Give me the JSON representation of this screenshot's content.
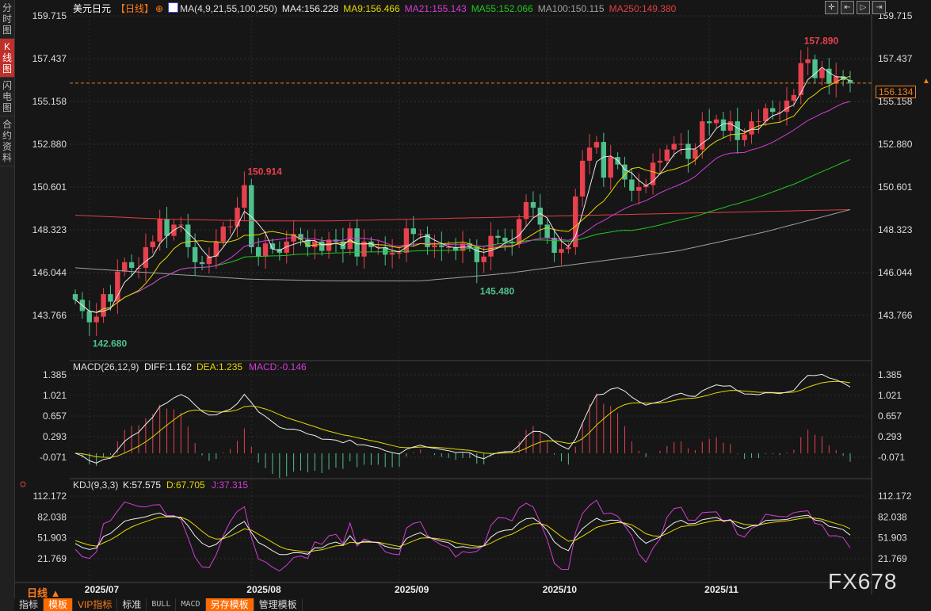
{
  "sidebar": {
    "tabs": [
      {
        "label": "分时图",
        "active": false
      },
      {
        "label": "K线图",
        "active": true
      },
      {
        "label": "闪电图",
        "active": false
      },
      {
        "label": "合约资料",
        "active": false
      }
    ]
  },
  "header": {
    "symbol": "美元日元",
    "period": "【日线】",
    "ma_label": "MA(4,9,21,55,100,250)",
    "ma4": "MA4:156.228",
    "ma9": "MA9:156.466",
    "ma21": "MA21:155.143",
    "ma55": "MA55:152.066",
    "ma100": "MA100:150.115",
    "ma250": "MA250:149.380"
  },
  "tools": [
    {
      "icon": "crosshair-icon",
      "glyph": "✛"
    },
    {
      "icon": "zoom-start-icon",
      "glyph": "⇤"
    },
    {
      "icon": "play-icon",
      "glyph": "▷"
    },
    {
      "icon": "zoom-end-icon",
      "glyph": "⇥"
    }
  ],
  "colors": {
    "up": "#e8414e",
    "down": "#4fc08d",
    "ma4": "#e8e8e8",
    "ma9": "#e6d600",
    "ma21": "#d63cd6",
    "ma55": "#1fc81f",
    "ma100": "#a0a0a0",
    "ma250": "#e04040",
    "current": "#f08020"
  },
  "current_price": "156.134",
  "period_button": "日线 ▲",
  "watermark": "FX678",
  "toolbar": [
    {
      "label": "指标",
      "style": "normal"
    },
    {
      "label": "模板",
      "style": "hl"
    },
    {
      "label": "VIP指标",
      "style": "vip"
    },
    {
      "label": "标准",
      "style": "normal"
    },
    {
      "label": "BULL",
      "style": "mono"
    },
    {
      "label": "MACD",
      "style": "mono"
    },
    {
      "label": "另存模板",
      "style": "hl"
    },
    {
      "label": "管理模板",
      "style": "normal"
    }
  ],
  "chart_data": {
    "type": "candlestick",
    "price_axis": {
      "ticks": [
        "159.715",
        "157.437",
        "155.158",
        "152.880",
        "150.601",
        "148.323",
        "146.044",
        "143.766"
      ],
      "range": [
        143.766,
        159.715
      ]
    },
    "x_ticks": [
      {
        "label": "2025/07",
        "index": 2
      },
      {
        "label": "2025/08",
        "index": 25
      },
      {
        "label": "2025/09",
        "index": 46
      },
      {
        "label": "2025/10",
        "index": 67
      },
      {
        "label": "2025/11",
        "index": 90
      }
    ],
    "closes": [
      144.6,
      144.0,
      143.4,
      143.7,
      144.9,
      144.5,
      146.1,
      146.6,
      146.3,
      146.3,
      147.4,
      147.7,
      148.9,
      148.0,
      148.6,
      148.6,
      147.4,
      146.6,
      146.5,
      146.9,
      147.7,
      148.5,
      148.5,
      149.5,
      150.7,
      147.4,
      146.9,
      147.6,
      147.3,
      147.1,
      147.7,
      148.1,
      147.8,
      147.4,
      147.7,
      147.2,
      147.8,
      147.7,
      147.3,
      148.4,
      146.9,
      147.7,
      147.4,
      147.4,
      147.0,
      147.1,
      147.1,
      148.4,
      148.1,
      148.1,
      147.4,
      147.5,
      147.4,
      147.4,
      147.2,
      147.6,
      147.4,
      146.6,
      146.9,
      148.0,
      147.9,
      147.7,
      147.6,
      148.9,
      149.8,
      149.5,
      148.6,
      147.9,
      147.1,
      147.3,
      147.4,
      150.1,
      152.0,
      152.7,
      153.0,
      151.1,
      152.2,
      151.8,
      151.0,
      150.4,
      150.6,
      150.7,
      151.9,
      152.0,
      152.6,
      152.9,
      152.9,
      152.1,
      152.6,
      154.1,
      154.0,
      154.2,
      153.6,
      154.1,
      153.1,
      153.4,
      154.1,
      154.1,
      154.8,
      154.6,
      154.6,
      155.2,
      155.5,
      157.2,
      157.4,
      156.4,
      156.9,
      156.1,
      156.5,
      156.3,
      156.134
    ],
    "annotations": [
      {
        "label": "157.890",
        "index": 103,
        "value": 157.89
      },
      {
        "label": "150.914",
        "index": 24,
        "value": 150.914
      },
      {
        "label": "145.480",
        "index": 57,
        "value": 145.48
      },
      {
        "label": "142.680",
        "index": 2,
        "value": 142.68
      }
    ],
    "ma100": [
      146.3,
      146.0,
      145.7,
      145.6,
      145.6,
      146.0,
      146.6,
      147.2,
      148.2,
      149.4
    ],
    "ma250": [
      149.1,
      148.9,
      148.8,
      148.8,
      148.9,
      149.0,
      149.1,
      149.2,
      149.3,
      149.4
    ],
    "macd": {
      "label": "MACD(26,12,9)",
      "diff": "DIFF:1.162",
      "dea": "DEA:1.235",
      "macd": "MACD:-0.146",
      "ticks": [
        "1.385",
        "1.021",
        "0.657",
        "0.293",
        "-0.071"
      ],
      "range": [
        -0.071,
        1.385
      ]
    },
    "kdj": {
      "label": "KDJ(9,3,3)",
      "k": "K:57.575",
      "d": "D:67.705",
      "j": "J:37.315",
      "ticks": [
        "112.172",
        "82.038",
        "51.903",
        "21.769"
      ],
      "range": [
        21.769,
        112.172
      ]
    }
  }
}
